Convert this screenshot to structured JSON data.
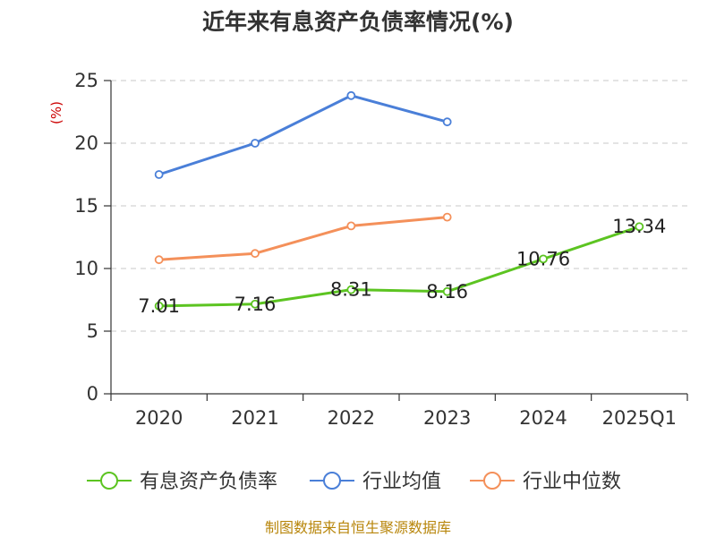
{
  "chart_data": {
    "type": "line",
    "title": "近年来有息资产负债率情况(%)",
    "ylabel": "(%)",
    "xlabel": "",
    "categories": [
      "2020",
      "2021",
      "2022",
      "2023",
      "2024",
      "2025Q1"
    ],
    "ylim": [
      0,
      25
    ],
    "yticks": [
      "0",
      "5",
      "10",
      "15",
      "20",
      "25"
    ],
    "grid": true,
    "legend_position": "bottom",
    "series": [
      {
        "name": "有息资产负债率",
        "color": "#5cc421",
        "values": [
          7.01,
          7.16,
          8.31,
          8.16,
          10.76,
          13.34
        ],
        "labels": [
          "7.01",
          "7.16",
          "8.31",
          "8.16",
          "10.76",
          "13.34"
        ]
      },
      {
        "name": "行业均值",
        "color": "#4a7fd8",
        "values": [
          17.5,
          20.0,
          23.8,
          21.7,
          null,
          null
        ]
      },
      {
        "name": "行业中位数",
        "color": "#f4905a",
        "values": [
          10.7,
          11.2,
          13.4,
          14.1,
          null,
          null
        ]
      }
    ],
    "source": "制图数据来自恒生聚源数据库"
  }
}
